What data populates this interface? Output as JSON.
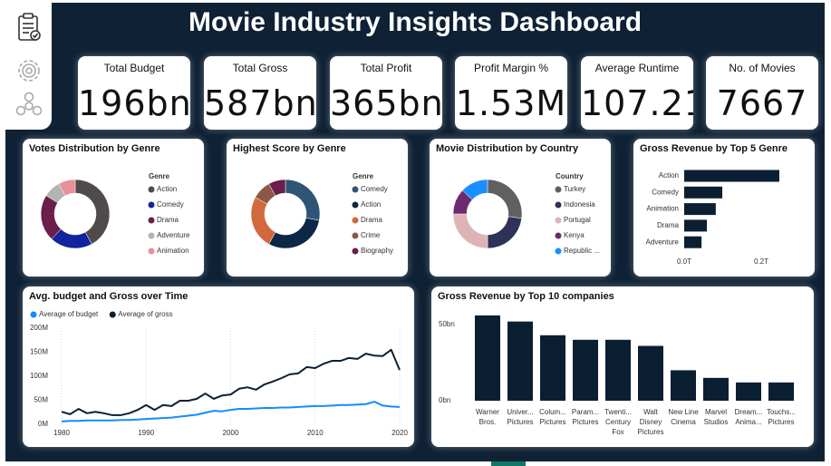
{
  "header": {
    "title": "Movie Industry Insights Dashboard"
  },
  "kpis": [
    {
      "label": "Total Budget",
      "value": "196bn"
    },
    {
      "label": "Total Gross",
      "value": "587bn"
    },
    {
      "label": "Total Profit",
      "value": "365bn"
    },
    {
      "label": "Profit Margin %",
      "value": "1.53M"
    },
    {
      "label": "Average Runtime",
      "value": "107.21"
    },
    {
      "label": "No. of Movies",
      "value": "7667"
    }
  ],
  "chart_data": [
    {
      "type": "donut",
      "title": "Votes Distribution by Genre",
      "legend_title": "Genre",
      "categories": [
        "Action",
        "Comedy",
        "Drama",
        "Adventure",
        "Animation"
      ],
      "values": [
        42,
        20,
        22,
        8,
        8
      ],
      "colors": [
        "#4f4b4a",
        "#12239e",
        "#6b1e4a",
        "#b3b3b3",
        "#e88f99"
      ]
    },
    {
      "type": "donut",
      "title": "Highest Score by Genre",
      "legend_title": "Genre",
      "categories": [
        "Comedy",
        "Action",
        "Drama",
        "Crime",
        "Biography"
      ],
      "values": [
        28,
        30,
        25,
        9,
        8
      ],
      "colors": [
        "#2f5576",
        "#0d2847",
        "#d2693e",
        "#8b5a45",
        "#6b1e4a"
      ]
    },
    {
      "type": "donut",
      "title": "Movie Distribution by Country",
      "legend_title": "Country",
      "categories": [
        "Turkey",
        "Indonesia",
        "Portugal",
        "Kenya",
        "Republic ..."
      ],
      "values": [
        27,
        23,
        25,
        12,
        13
      ],
      "colors": [
        "#606060",
        "#2e3258",
        "#ddb3b5",
        "#6e2a6f",
        "#1a8fff"
      ]
    },
    {
      "type": "bar",
      "horizontal": true,
      "title": "Gross Revenue by Top 5 Genre",
      "categories": [
        "Action",
        "Comedy",
        "Animation",
        "Drama",
        "Adventure"
      ],
      "values": [
        0.247,
        0.099,
        0.082,
        0.059,
        0.045
      ],
      "color": "#0b1f33",
      "xlim": [
        0,
        0.3
      ],
      "xticks": [
        {
          "value": 0,
          "label": "0.0T"
        },
        {
          "value": 0.2,
          "label": "0.2T"
        }
      ]
    },
    {
      "type": "line",
      "title": "Avg. budget and Gross over Time",
      "x": [
        1980,
        1981,
        1982,
        1983,
        1984,
        1985,
        1986,
        1987,
        1988,
        1989,
        1990,
        1991,
        1992,
        1993,
        1994,
        1995,
        1996,
        1997,
        1998,
        1999,
        2000,
        2001,
        2002,
        2003,
        2004,
        2005,
        2006,
        2007,
        2008,
        2009,
        2010,
        2011,
        2012,
        2013,
        2014,
        2015,
        2016,
        2017,
        2018,
        2019,
        2020
      ],
      "series": [
        {
          "name": "Average of budget",
          "color": "#118dff",
          "values": [
            6,
            7,
            7,
            8,
            8,
            8,
            8,
            9,
            9,
            10,
            11,
            12,
            13,
            14,
            16,
            18,
            20,
            24,
            28,
            27,
            30,
            32,
            32,
            33,
            34,
            34,
            35,
            35,
            36,
            37,
            38,
            38,
            39,
            40,
            40,
            41,
            42,
            47,
            39,
            37,
            36
          ]
        },
        {
          "name": "Average of gross",
          "color": "#0b1f33",
          "values": [
            26,
            21,
            32,
            23,
            26,
            23,
            19,
            19,
            23,
            30,
            40,
            30,
            40,
            38,
            49,
            49,
            53,
            64,
            53,
            60,
            62,
            74,
            77,
            72,
            83,
            89,
            96,
            104,
            106,
            119,
            117,
            126,
            132,
            132,
            138,
            136,
            147,
            143,
            142,
            155,
            113
          ]
        }
      ],
      "xlim": [
        1980,
        2020
      ],
      "xticks": [
        1980,
        1990,
        2000,
        2010,
        2020
      ],
      "ylim": [
        0,
        200
      ],
      "yticks": [
        {
          "value": 0,
          "label": "0M"
        },
        {
          "value": 50,
          "label": "50M"
        },
        {
          "value": 100,
          "label": "100M"
        },
        {
          "value": 150,
          "label": "150M"
        },
        {
          "value": 200,
          "label": "200M"
        }
      ]
    },
    {
      "type": "bar",
      "horizontal": false,
      "title": "Gross Revenue by Top 10 companies",
      "categories": [
        "Warner Bros.",
        "Univer... Pictures",
        "Colum... Pictures",
        "Param... Pictures",
        "Twenti... Century Fox",
        "Walt Disney Pictures",
        "New Line Cinema",
        "Marvel Studios",
        "Dream... Anima...",
        "Touchs... Pictures"
      ],
      "values": [
        56,
        52,
        43,
        40,
        40,
        36,
        20,
        15,
        12,
        12
      ],
      "color": "#0b1f33",
      "ylim": [
        0,
        60
      ],
      "yticks": [
        {
          "value": 0,
          "label": "0bn"
        },
        {
          "value": 50,
          "label": "50bn"
        }
      ]
    }
  ]
}
